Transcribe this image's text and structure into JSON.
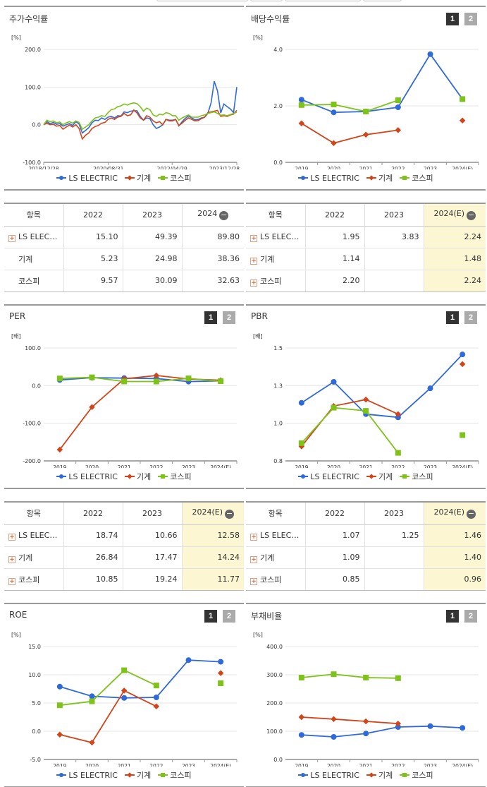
{
  "colors": {
    "ls": "#2f6ad8",
    "machinery": "#d2451a",
    "kospi": "#7ec21a",
    "grid": "#e6e6e6",
    "axis": "#333333"
  },
  "legend": {
    "ls": "LS ELECTRIC",
    "machinery": "기계",
    "kospi": "코스피"
  },
  "badges": {
    "one": "1",
    "two": "2"
  },
  "panels": [
    {
      "id": "stock",
      "title": "주가수익률",
      "chart_data": {
        "type": "line",
        "unit": "[%]",
        "ylim": [
          -100,
          200
        ],
        "yticks": [
          "200.0",
          "100.0",
          "0.0",
          "-100.0"
        ],
        "xticks": [
          "2018/12/28",
          "2020/08/31",
          "2022/04/29",
          "2023/12/28"
        ],
        "n_points": 61,
        "series": [
          {
            "name": "LS ELECTRIC",
            "key": "ls",
            "values": [
              0,
              8,
              3,
              6,
              1,
              3,
              -4,
              0,
              3,
              -2,
              8,
              2,
              -22,
              -15,
              -8,
              5,
              12,
              11,
              18,
              14,
              20,
              22,
              18,
              24,
              23,
              34,
              32,
              36,
              37,
              37,
              22,
              12,
              18,
              16,
              0,
              -10,
              -6,
              0,
              14,
              12,
              12,
              14,
              -3,
              8,
              17,
              23,
              18,
              13,
              14,
              18,
              20,
              30,
              58,
              115,
              90,
              31,
              55,
              48,
              42,
              32,
              100
            ],
            "interpolation": "linear"
          },
          {
            "name": "기계",
            "key": "machinery",
            "values": [
              0,
              4,
              0,
              1,
              -4,
              -2,
              -12,
              -6,
              -1,
              -6,
              0,
              -10,
              -38,
              -28,
              -22,
              -10,
              -5,
              -2,
              4,
              6,
              14,
              18,
              14,
              20,
              22,
              30,
              24,
              26,
              39,
              31,
              18,
              12,
              24,
              20,
              10,
              5,
              8,
              0,
              14,
              10,
              10,
              14,
              -2,
              4,
              12,
              18,
              14,
              10,
              11,
              16,
              20,
              32,
              34,
              36,
              38,
              22,
              24,
              22,
              26,
              28,
              38
            ]
          },
          {
            "name": "코스피",
            "key": "kospi",
            "values": [
              0,
              12,
              8,
              10,
              5,
              7,
              0,
              5,
              8,
              4,
              10,
              6,
              -12,
              -6,
              0,
              10,
              18,
              20,
              24,
              22,
              32,
              40,
              42,
              48,
              50,
              55,
              52,
              56,
              58,
              56,
              48,
              36,
              44,
              40,
              26,
              22,
              28,
              26,
              32,
              30,
              24,
              24,
              12,
              18,
              22,
              26,
              20,
              20,
              20,
              24,
              26,
              30,
              32,
              34,
              30,
              25,
              26,
              24,
              27,
              30,
              33
            ]
          }
        ]
      }
    },
    {
      "id": "dividend",
      "title": "배당수익률",
      "chart_data": {
        "type": "line",
        "unit": "[%]",
        "ylim": [
          0,
          4
        ],
        "yticks": [
          "4.0",
          "2.0",
          "0.0"
        ],
        "categories": [
          "2019",
          "2020",
          "2021",
          "2022",
          "2023",
          "2024(E)"
        ],
        "series": [
          {
            "name": "LS ELECTRIC",
            "key": "ls",
            "values": [
              2.22,
              1.77,
              1.8,
              1.95,
              3.83,
              2.24
            ]
          },
          {
            "name": "기계",
            "key": "machinery",
            "values": [
              1.38,
              0.68,
              0.98,
              1.14,
              null,
              1.48
            ]
          },
          {
            "name": "코스피",
            "key": "kospi",
            "values": [
              2.03,
              2.05,
              1.8,
              2.2,
              null,
              2.24
            ]
          }
        ]
      }
    },
    {
      "id": "per",
      "title": "PER",
      "chart_data": {
        "type": "line",
        "unit": "[배]",
        "ylim": [
          -200,
          100
        ],
        "yticks": [
          "100.0",
          "0.0",
          "-100.0",
          "-200.0"
        ],
        "categories": [
          "2019",
          "2020",
          "2021",
          "2022",
          "2023",
          "2024(E)"
        ],
        "series": [
          {
            "name": "LS ELECTRIC",
            "key": "ls",
            "values": [
              15.0,
              21.0,
              20.0,
              18.74,
              10.66,
              12.58
            ]
          },
          {
            "name": "기계",
            "key": "machinery",
            "values": [
              -170.0,
              -57.0,
              18.0,
              26.84,
              17.47,
              14.24
            ]
          },
          {
            "name": "코스피",
            "key": "kospi",
            "values": [
              19.0,
              22.0,
              11.0,
              10.85,
              19.24,
              11.77
            ]
          }
        ]
      }
    },
    {
      "id": "pbr",
      "title": "PBR",
      "chart_data": {
        "type": "line",
        "unit": "[배]",
        "ylim": [
          0.8,
          1.5
        ],
        "yticks": [
          "1.5",
          "1.3",
          "1.0",
          "0.8"
        ],
        "categories": [
          "2019",
          "2020",
          "2021",
          "2022",
          "2023",
          "2024(E)"
        ],
        "series": [
          {
            "name": "LS ELECTRIC",
            "key": "ls",
            "values": [
              1.16,
              1.29,
              1.09,
              1.07,
              1.25,
              1.46
            ]
          },
          {
            "name": "기계",
            "key": "machinery",
            "values": [
              0.89,
              1.14,
              1.18,
              1.09,
              null,
              1.4
            ]
          },
          {
            "name": "코스피",
            "key": "kospi",
            "values": [
              0.91,
              1.13,
              1.11,
              0.85,
              null,
              0.96
            ]
          }
        ]
      }
    },
    {
      "id": "roe",
      "title": "ROE",
      "chart_data": {
        "type": "line",
        "unit": "[%]",
        "ylim": [
          -5,
          15
        ],
        "yticks": [
          "15.0",
          "10.0",
          "5.0",
          "0.0",
          "-5.0"
        ],
        "categories": [
          "2019",
          "2020",
          "2021",
          "2022",
          "2023",
          "2024(E)"
        ],
        "series": [
          {
            "name": "LS ELECTRIC",
            "key": "ls",
            "values": [
              7.9,
              6.2,
              5.9,
              6.0,
              12.6,
              12.3
            ]
          },
          {
            "name": "기계",
            "key": "machinery",
            "values": [
              -0.6,
              -2.0,
              7.2,
              4.4,
              null,
              10.3
            ]
          },
          {
            "name": "코스피",
            "key": "kospi",
            "values": [
              4.6,
              5.3,
              10.8,
              8.1,
              null,
              8.5
            ]
          }
        ]
      }
    },
    {
      "id": "debt",
      "title": "부채비율",
      "chart_data": {
        "type": "line",
        "unit": "[%]",
        "ylim": [
          0,
          400
        ],
        "yticks": [
          "400.0",
          "300.0",
          "200.0",
          "100.0",
          "0.0"
        ],
        "categories": [
          "2019",
          "2020",
          "2021",
          "2022",
          "2023",
          "2024(E)"
        ],
        "series": [
          {
            "name": "LS ELECTRIC",
            "key": "ls",
            "values": [
              87,
              80,
              92,
              115,
              118,
              112
            ]
          },
          {
            "name": "기계",
            "key": "machinery",
            "values": [
              150,
              143,
              135,
              127,
              null,
              null
            ]
          },
          {
            "name": "코스피",
            "key": "kospi",
            "values": [
              290,
              302,
              290,
              288,
              null,
              null
            ]
          }
        ]
      }
    }
  ],
  "tables": [
    {
      "id": "stock",
      "headers": [
        "항목",
        "2022",
        "2023",
        "2024"
      ],
      "highlight_last": false,
      "rows": [
        {
          "name": "LS ELEC…",
          "plus": true,
          "values": [
            "15.10",
            "49.39",
            "89.80"
          ]
        },
        {
          "name": "기계",
          "plus": false,
          "values": [
            "5.23",
            "24.98",
            "38.36"
          ]
        },
        {
          "name": "코스피",
          "plus": false,
          "values": [
            "9.57",
            "30.09",
            "32.63"
          ]
        }
      ]
    },
    {
      "id": "dividend",
      "headers": [
        "항목",
        "2022",
        "2023",
        "2024(E)"
      ],
      "highlight_last": true,
      "rows": [
        {
          "name": "LS ELEC…",
          "plus": true,
          "values": [
            "1.95",
            "3.83",
            "2.24"
          ]
        },
        {
          "name": "기계",
          "plus": true,
          "values": [
            "1.14",
            "",
            "1.48"
          ]
        },
        {
          "name": "코스피",
          "plus": true,
          "values": [
            "2.20",
            "",
            "2.24"
          ]
        }
      ]
    },
    {
      "id": "per",
      "headers": [
        "항목",
        "2022",
        "2023",
        "2024(E)"
      ],
      "highlight_last": true,
      "rows": [
        {
          "name": "LS ELEC…",
          "plus": true,
          "values": [
            "18.74",
            "10.66",
            "12.58"
          ]
        },
        {
          "name": "기계",
          "plus": true,
          "values": [
            "26.84",
            "17.47",
            "14.24"
          ]
        },
        {
          "name": "코스피",
          "plus": true,
          "values": [
            "10.85",
            "19.24",
            "11.77"
          ]
        }
      ]
    },
    {
      "id": "pbr",
      "headers": [
        "항목",
        "2022",
        "2023",
        "2024(E)"
      ],
      "highlight_last": true,
      "rows": [
        {
          "name": "LS ELEC…",
          "plus": true,
          "values": [
            "1.07",
            "1.25",
            "1.46"
          ]
        },
        {
          "name": "기계",
          "plus": true,
          "values": [
            "1.09",
            "",
            "1.40"
          ]
        },
        {
          "name": "코스피",
          "plus": true,
          "values": [
            "0.85",
            "",
            "0.96"
          ]
        }
      ]
    }
  ]
}
